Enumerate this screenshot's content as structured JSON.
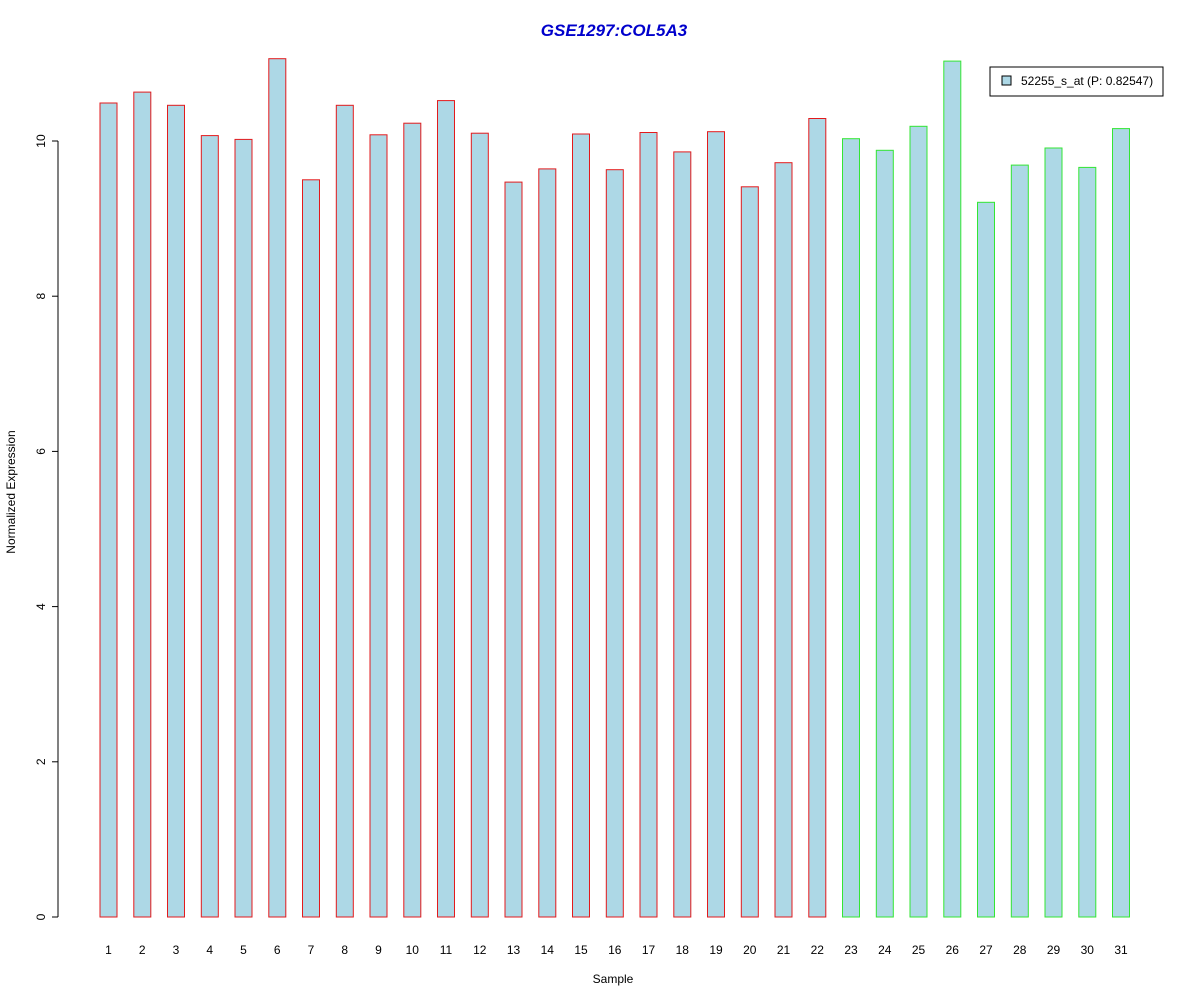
{
  "chart_data": {
    "type": "bar",
    "title": "GSE1297:COL5A3",
    "xlabel": "Sample",
    "ylabel": "Normalized Expression",
    "categories": [
      "1",
      "2",
      "3",
      "4",
      "5",
      "6",
      "7",
      "8",
      "9",
      "10",
      "11",
      "12",
      "13",
      "14",
      "15",
      "16",
      "17",
      "18",
      "19",
      "20",
      "21",
      "22",
      "23",
      "24",
      "25",
      "26",
      "27",
      "28",
      "29",
      "30",
      "31"
    ],
    "series": [
      {
        "name": "52255_s_at (P: 0.82547)",
        "values": [
          10.49,
          10.63,
          10.46,
          10.07,
          10.02,
          11.06,
          9.5,
          10.46,
          10.08,
          10.23,
          10.52,
          10.1,
          9.47,
          9.64,
          10.09,
          9.63,
          10.11,
          9.86,
          10.12,
          9.41,
          9.72,
          10.29,
          10.03,
          9.88,
          10.19,
          11.03,
          9.21,
          9.69,
          9.91,
          9.66,
          10.16
        ]
      }
    ],
    "group_outline_colors": [
      "#e31a1c",
      "#e31a1c",
      "#e31a1c",
      "#e31a1c",
      "#e31a1c",
      "#e31a1c",
      "#e31a1c",
      "#e31a1c",
      "#e31a1c",
      "#e31a1c",
      "#e31a1c",
      "#e31a1c",
      "#e31a1c",
      "#e31a1c",
      "#e31a1c",
      "#e31a1c",
      "#e31a1c",
      "#e31a1c",
      "#e31a1c",
      "#e31a1c",
      "#e31a1c",
      "#e31a1c",
      "#33e633",
      "#33e633",
      "#33e633",
      "#33e633",
      "#33e633",
      "#33e633",
      "#33e633",
      "#33e633",
      "#33e633"
    ],
    "bar_fill_color": "#add8e6",
    "title_color": "#0000cc",
    "yticks": [
      0,
      2,
      4,
      6,
      8,
      10
    ],
    "ylim": [
      0,
      11.06
    ],
    "grid": false,
    "legend_position": "top-right"
  }
}
